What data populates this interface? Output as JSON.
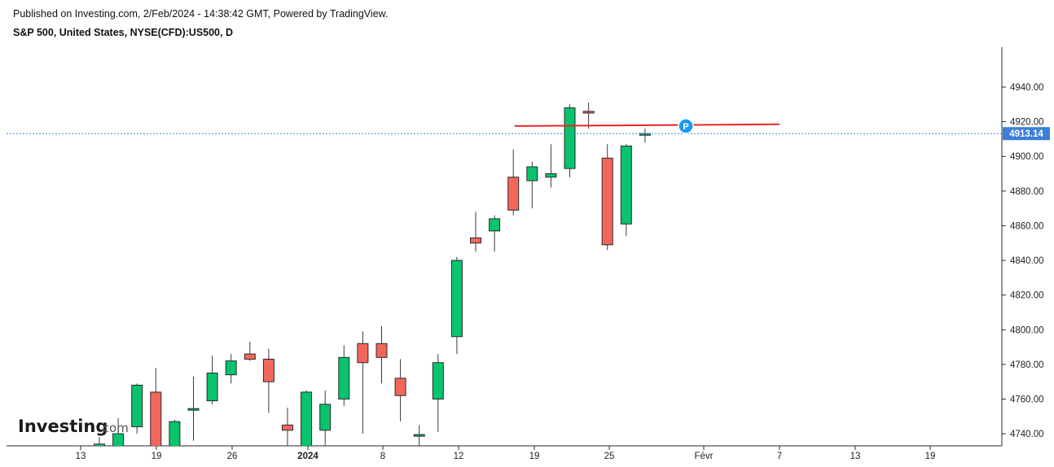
{
  "header": {
    "publish_line": "Published on Investing.com, 2/Feb/2024 - 14:38:42 GMT, Powered by TradingView.",
    "symbol_line": "S&P 500, United States, NYSE(CFD):US500, D"
  },
  "logo": {
    "text": "Investing",
    "suffix": ".com"
  },
  "last_price": {
    "label": "4913.14",
    "value": 4913.14,
    "color": "#3b7fd9"
  },
  "resistance_line": {
    "color": "#e8242a",
    "start": 4917.5,
    "end": 4918.5
  },
  "marker": {
    "label": "P",
    "value": 4917.5,
    "color": "#1e9af0"
  },
  "colors": {
    "up": "#08c46c",
    "down": "#f2665c",
    "wick": "#3a3a3a"
  },
  "chart_data": {
    "type": "candlestick",
    "y_axis": {
      "ylim": [
        4733,
        4963
      ],
      "ticks": [
        "4740.00",
        "4760.00",
        "4780.00",
        "4800.00",
        "4820.00",
        "4840.00",
        "4860.00",
        "4880.00",
        "4900.00",
        "4920.00",
        "4940.00"
      ]
    },
    "x_axis": {
      "tick_labels": [
        "13",
        "19",
        "26",
        "2024",
        "8",
        "12",
        "19",
        "25",
        "Févr",
        "7",
        "13",
        "19"
      ]
    },
    "candles": [
      {
        "o": 4730,
        "h": 4738,
        "l": 4720,
        "c": 4734
      },
      {
        "o": 4731,
        "h": 4749,
        "l": 4722,
        "c": 4740
      },
      {
        "o": 4744,
        "h": 4769,
        "l": 4740,
        "c": 4768
      },
      {
        "o": 4764,
        "h": 4778,
        "l": 4724,
        "c": 4725
      },
      {
        "o": 4730,
        "h": 4748,
        "l": 4722,
        "c": 4747
      },
      {
        "o": 4754,
        "h": 4773,
        "l": 4736,
        "c": 4754.5
      },
      {
        "o": 4759,
        "h": 4785,
        "l": 4757,
        "c": 4775
      },
      {
        "o": 4774,
        "h": 4786,
        "l": 4769,
        "c": 4782
      },
      {
        "o": 4786,
        "h": 4793,
        "l": 4782,
        "c": 4783
      },
      {
        "o": 4783,
        "h": 4789,
        "l": 4752,
        "c": 4770
      },
      {
        "o": 4745,
        "h": 4755,
        "l": 4732,
        "c": 4742
      },
      {
        "o": 4726,
        "h": 4765,
        "l": 4724,
        "c": 4764
      },
      {
        "o": 4742,
        "h": 4765,
        "l": 4732,
        "c": 4757
      },
      {
        "o": 4760,
        "h": 4791,
        "l": 4756,
        "c": 4784
      },
      {
        "o": 4792,
        "h": 4799,
        "l": 4740,
        "c": 4781
      },
      {
        "o": 4792,
        "h": 4802,
        "l": 4769,
        "c": 4784
      },
      {
        "o": 4772,
        "h": 4783,
        "l": 4747,
        "c": 4762
      },
      {
        "o": 4739,
        "h": 4745,
        "l": 4733,
        "c": 4739.5
      },
      {
        "o": 4760,
        "h": 4786,
        "l": 4741,
        "c": 4781
      },
      {
        "o": 4796,
        "h": 4842,
        "l": 4786,
        "c": 4840
      },
      {
        "o": 4853,
        "h": 4868,
        "l": 4845,
        "c": 4850
      },
      {
        "o": 4857,
        "h": 4866,
        "l": 4845,
        "c": 4864
      },
      {
        "o": 4888,
        "h": 4904,
        "l": 4866,
        "c": 4869
      },
      {
        "o": 4886,
        "h": 4897,
        "l": 4870,
        "c": 4894
      },
      {
        "o": 4888,
        "h": 4907,
        "l": 4882,
        "c": 4890
      },
      {
        "o": 4893,
        "h": 4930,
        "l": 4888,
        "c": 4928
      },
      {
        "o": 4926,
        "h": 4931,
        "l": 4916,
        "c": 4925
      },
      {
        "o": 4899,
        "h": 4907,
        "l": 4846,
        "c": 4849
      },
      {
        "o": 4861,
        "h": 4907,
        "l": 4854,
        "c": 4906
      },
      {
        "o": 4912.5,
        "h": 4916,
        "l": 4908,
        "c": 4913.14
      }
    ]
  }
}
